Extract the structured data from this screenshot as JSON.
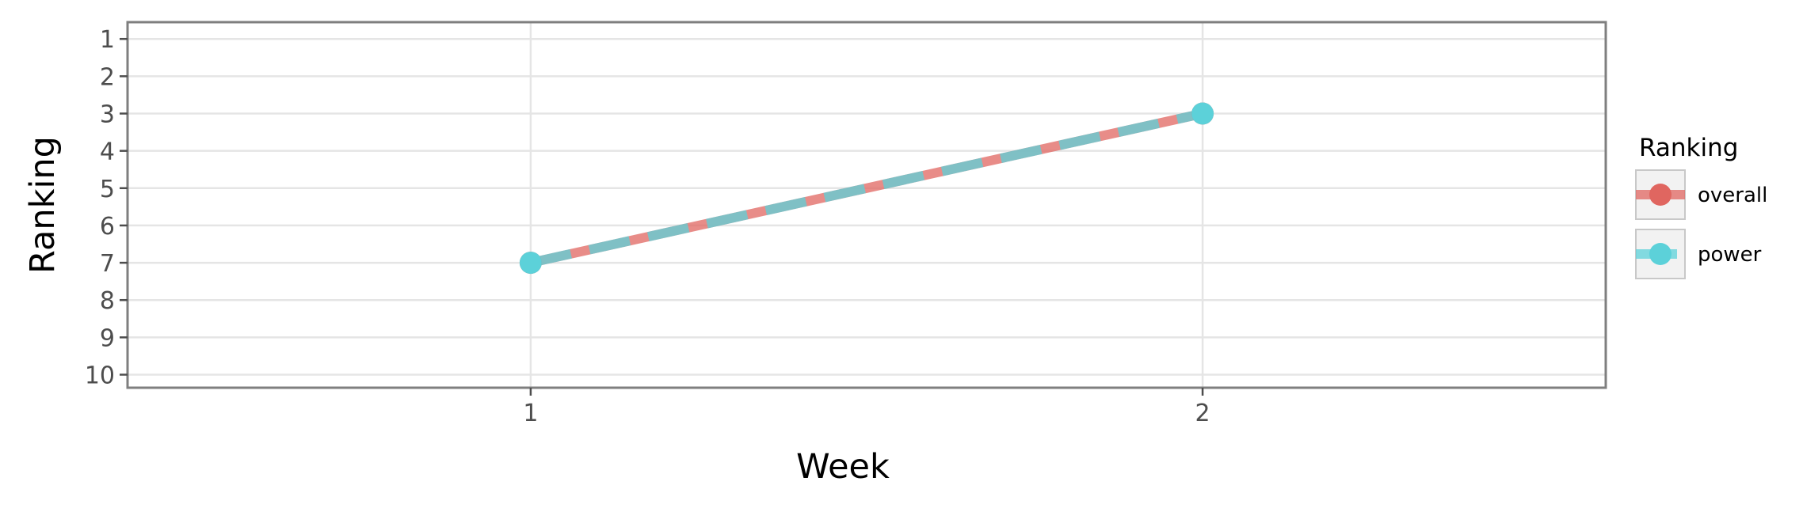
{
  "chart_data": {
    "type": "line",
    "title": "",
    "xlabel": "Week",
    "ylabel": "Ranking",
    "x": [
      1,
      2
    ],
    "x_ticks": [
      "1",
      "2"
    ],
    "xlim": [
      0.4,
      2.6
    ],
    "y_ticks": [
      "1",
      "2",
      "3",
      "4",
      "5",
      "6",
      "7",
      "8",
      "9",
      "10"
    ],
    "ylim": [
      10.35,
      0.55
    ],
    "y_reversed": true,
    "grid": true,
    "legend": {
      "title": "Ranking",
      "position": "right"
    },
    "series": [
      {
        "name": "overall",
        "values": [
          7,
          3
        ],
        "color": "#e06660",
        "line_style": "solid"
      },
      {
        "name": "power",
        "values": [
          7,
          3
        ],
        "color": "#5cd1d9",
        "line_style": "dashed"
      }
    ]
  }
}
